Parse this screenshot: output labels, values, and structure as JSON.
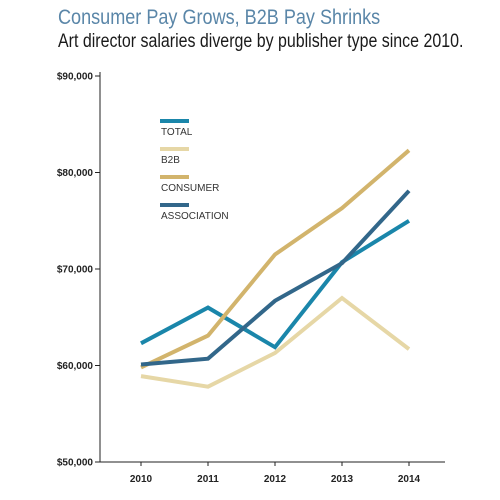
{
  "header": {
    "title": "Consumer Pay Grows, B2B Pay Shrinks",
    "subtitle": "Art director salaries diverge by publisher type since 2010."
  },
  "chart_data": {
    "type": "line",
    "title": "Consumer Pay Grows, B2B Pay Shrinks",
    "subtitle": "Art director salaries diverge by publisher type since 2010.",
    "xlabel": "",
    "ylabel": "",
    "x": [
      2010,
      2011,
      2012,
      2013,
      2014
    ],
    "x_tick_labels": [
      "2010",
      "2011",
      "2012",
      "2013",
      "2014"
    ],
    "ylim": [
      50000,
      90000
    ],
    "y_ticks": [
      50000,
      60000,
      70000,
      80000,
      90000
    ],
    "y_tick_labels": [
      "$50,000",
      "$60,000",
      "$70,000",
      "$80,000",
      "$90,000"
    ],
    "grid": false,
    "legend_position": "top-left",
    "series": [
      {
        "name": "TOTAL",
        "color": "#1a86aa",
        "values": [
          62300,
          66000,
          61900,
          70700,
          75000
        ]
      },
      {
        "name": "B2B",
        "color": "#e6d7a6",
        "values": [
          58900,
          57800,
          61300,
          67000,
          61700
        ]
      },
      {
        "name": "CONSUMER",
        "color": "#d2b46c",
        "values": [
          59800,
          63100,
          71500,
          76300,
          82300
        ]
      },
      {
        "name": "ASSOCIATION",
        "color": "#32678a",
        "values": [
          60100,
          60700,
          66700,
          70600,
          78100
        ]
      }
    ]
  }
}
